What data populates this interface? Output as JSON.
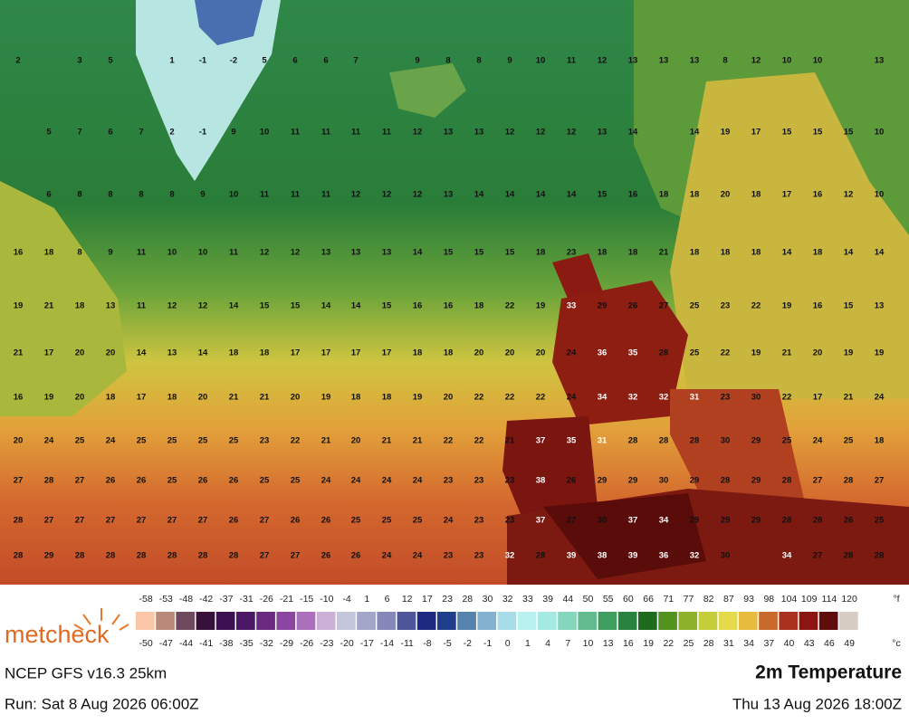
{
  "map": {
    "grid": {
      "columns": [
        20,
        54,
        88,
        122,
        156,
        190,
        224,
        258,
        292,
        326,
        360,
        393,
        427,
        461,
        495,
        529,
        563,
        597,
        631,
        665,
        699,
        733,
        767,
        801,
        835,
        869,
        903,
        937,
        971
      ],
      "rows": [
        [
          2,
          null,
          3,
          5,
          null,
          1,
          -1,
          -2,
          5,
          6,
          6,
          7,
          null,
          9,
          8,
          8,
          9,
          10,
          11,
          12,
          13,
          13,
          13,
          8,
          12,
          10,
          10,
          null,
          13
        ],
        [
          null,
          5,
          7,
          6,
          7,
          2,
          -1,
          9,
          10,
          11,
          11,
          11,
          11,
          12,
          13,
          13,
          12,
          12,
          12,
          13,
          14,
          null,
          14,
          19,
          17,
          15,
          15,
          15,
          10
        ],
        [
          null,
          6,
          8,
          8,
          8,
          8,
          9,
          10,
          11,
          11,
          11,
          12,
          12,
          12,
          13,
          14,
          14,
          14,
          14,
          15,
          16,
          18,
          18,
          20,
          18,
          17,
          16,
          12,
          10
        ],
        [
          16,
          18,
          8,
          9,
          11,
          10,
          10,
          11,
          12,
          12,
          13,
          13,
          13,
          14,
          15,
          15,
          15,
          18,
          23,
          18,
          18,
          21,
          18,
          18,
          18,
          14,
          18,
          14,
          14
        ],
        [
          19,
          21,
          18,
          13,
          11,
          12,
          12,
          14,
          15,
          15,
          14,
          14,
          15,
          16,
          16,
          18,
          22,
          19,
          33,
          29,
          26,
          27,
          25,
          23,
          22,
          19,
          16,
          15,
          13
        ],
        [
          21,
          17,
          20,
          20,
          14,
          13,
          14,
          18,
          18,
          17,
          17,
          17,
          17,
          18,
          18,
          20,
          20,
          20,
          24,
          36,
          35,
          28,
          25,
          22,
          19,
          21,
          20,
          19,
          19
        ],
        [
          16,
          19,
          20,
          18,
          17,
          18,
          20,
          21,
          21,
          20,
          19,
          18,
          18,
          19,
          20,
          22,
          22,
          22,
          24,
          34,
          32,
          32,
          31,
          23,
          30,
          22,
          17,
          21,
          24
        ],
        [
          20,
          24,
          25,
          24,
          25,
          25,
          25,
          25,
          23,
          22,
          21,
          20,
          21,
          21,
          22,
          22,
          21,
          37,
          35,
          31,
          28,
          28,
          28,
          30,
          29,
          25,
          24,
          25,
          18
        ],
        [
          27,
          28,
          27,
          26,
          26,
          25,
          26,
          26,
          25,
          25,
          24,
          24,
          24,
          24,
          23,
          23,
          23,
          38,
          26,
          29,
          29,
          30,
          29,
          28,
          29,
          28,
          27,
          28,
          27
        ],
        [
          28,
          27,
          27,
          27,
          27,
          27,
          27,
          26,
          27,
          26,
          26,
          25,
          25,
          25,
          24,
          23,
          23,
          37,
          27,
          30,
          37,
          34,
          29,
          29,
          29,
          28,
          28,
          26,
          25
        ],
        [
          28,
          29,
          28,
          28,
          28,
          28,
          28,
          28,
          27,
          27,
          26,
          26,
          24,
          24,
          23,
          23,
          32,
          28,
          39,
          38,
          39,
          36,
          32,
          30,
          null,
          34,
          27,
          28,
          28
        ]
      ],
      "row_y": [
        67,
        146,
        215,
        279,
        338,
        390,
        439,
        487,
        531,
        575,
        614
      ]
    }
  },
  "legend": {
    "fahrenheit_unit": "°f",
    "celsius_unit": "°c",
    "fahrenheit": [
      -58,
      -53,
      -48,
      -42,
      -37,
      -31,
      -26,
      -21,
      -15,
      -10,
      -4,
      1,
      6,
      12,
      17,
      23,
      28,
      30,
      32,
      33,
      39,
      44,
      50,
      55,
      60,
      66,
      71,
      77,
      82,
      87,
      93,
      98,
      104,
      109,
      114,
      120
    ],
    "celsius": [
      -50,
      -47,
      -44,
      -41,
      -38,
      -35,
      -32,
      -29,
      -26,
      -23,
      -20,
      -17,
      -14,
      -11,
      -8,
      -5,
      -2,
      -1,
      0,
      1,
      4,
      7,
      10,
      13,
      16,
      19,
      22,
      25,
      28,
      31,
      34,
      37,
      40,
      43,
      46,
      49
    ],
    "colors": [
      "#f9c6a6",
      "#b98a7a",
      "#6e4a5e",
      "#36123a",
      "#3b1152",
      "#4c1866",
      "#6a2a7f",
      "#8c45a0",
      "#ab6fbe",
      "#cdb0d8",
      "#c4c6dc",
      "#a2a6c8",
      "#8588b9",
      "#4e559a",
      "#1e2a80",
      "#1f3f8c",
      "#5683ad",
      "#82b2cf",
      "#a8dce8",
      "#b9f0f0",
      "#a5eae2",
      "#84d6bd",
      "#61bb8c",
      "#3f9d5f",
      "#2a8240",
      "#1e6b1e",
      "#52921f",
      "#8db12a",
      "#c6cd3a",
      "#e4da4c",
      "#e6bb3e",
      "#c9692c",
      "#a9311d",
      "#8b1510",
      "#5e0c0c",
      "#d8cdc4"
    ]
  },
  "footer": {
    "logo": "metcheck",
    "model": "NCEP GFS v16.3 25km",
    "product": "2m Temperature",
    "run": "Run: Sat 8 Aug 2026 06:00Z",
    "valid": "Thu 13 Aug 2026 18:00Z"
  }
}
